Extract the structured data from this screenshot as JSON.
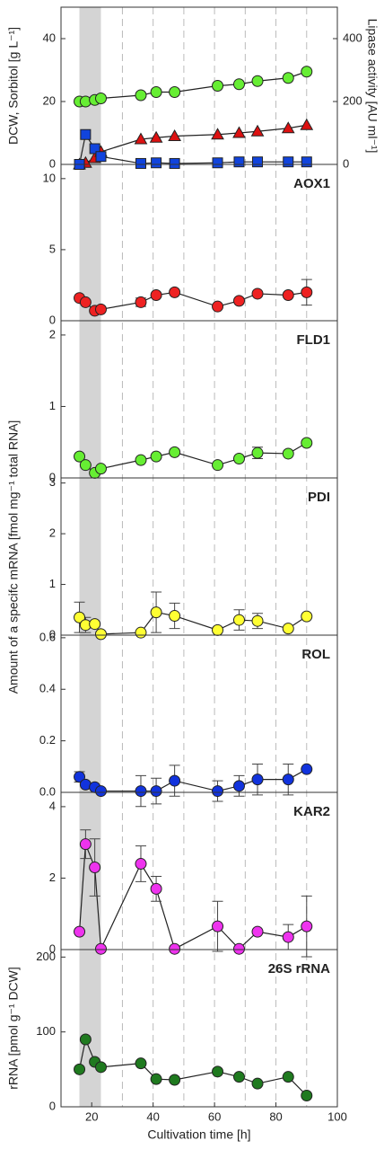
{
  "chart_data": [
    {
      "type": "line",
      "ylabel": "DCW, Sorbitol [g L⁻¹]",
      "y2label": "Lipase activity [AU ml⁻¹]",
      "x": [
        16,
        18,
        21,
        23,
        36,
        41,
        47,
        61,
        68,
        74,
        84,
        90
      ],
      "ylim": [
        0,
        50
      ],
      "yticks": [
        0,
        20,
        40
      ],
      "y2lim": [
        0,
        500
      ],
      "y2ticks": [
        0,
        200,
        400
      ],
      "series": [
        {
          "color": "#66ee33",
          "marker": "circle",
          "values": [
            20,
            20,
            20.5,
            21,
            22,
            23,
            23,
            25,
            25.5,
            26.5,
            27.5,
            29.5
          ]
        },
        {
          "color": "#dd1111",
          "marker": "triangle",
          "axis": "y2",
          "values": [
            0,
            5,
            20,
            40,
            80,
            85,
            90,
            95,
            100,
            105,
            115,
            125
          ]
        },
        {
          "color": "#1144dd",
          "marker": "square",
          "values": [
            0,
            9.5,
            5,
            2.5,
            0.3,
            0.5,
            0.3,
            0.5,
            0.8,
            0.8,
            0.8,
            0.8
          ]
        }
      ]
    },
    {
      "type": "line",
      "label": "AOX1",
      "x": [
        16,
        18,
        21,
        23,
        36,
        41,
        47,
        61,
        68,
        74,
        84,
        90
      ],
      "ylim": [
        0,
        11
      ],
      "yticks": [
        0,
        5,
        10
      ],
      "series": [
        {
          "color": "#ee2222",
          "marker": "circle",
          "values": [
            1.6,
            1.3,
            0.7,
            0.8,
            1.3,
            1.8,
            2.0,
            1.0,
            1.4,
            1.9,
            1.8,
            2.0
          ],
          "errors": [
            null,
            null,
            null,
            null,
            0.3,
            null,
            null,
            null,
            null,
            null,
            null,
            0.9
          ]
        }
      ]
    },
    {
      "type": "line",
      "label": "FLD1",
      "x": [
        16,
        18,
        21,
        23,
        36,
        41,
        47,
        61,
        68,
        74,
        84,
        90
      ],
      "ylim": [
        0,
        2.2
      ],
      "yticks": [
        0,
        1,
        2
      ],
      "series": [
        {
          "color": "#66ee33",
          "marker": "circle",
          "values": [
            0.3,
            0.18,
            0.07,
            0.13,
            0.25,
            0.3,
            0.36,
            0.18,
            0.27,
            0.35,
            0.34,
            0.49
          ],
          "errors": [
            null,
            null,
            null,
            null,
            null,
            null,
            null,
            null,
            null,
            0.08,
            null,
            null
          ]
        }
      ]
    },
    {
      "type": "line",
      "label": "PDI",
      "x": [
        16,
        18,
        21,
        23,
        36,
        41,
        47,
        61,
        68,
        74,
        84,
        90
      ],
      "ylim": [
        0,
        3.1
      ],
      "yticks": [
        0,
        1,
        2,
        3
      ],
      "series": [
        {
          "color": "#ffff33",
          "marker": "circle",
          "values": [
            0.35,
            0.2,
            0.22,
            0.02,
            0.05,
            0.45,
            0.38,
            0.1,
            0.3,
            0.28,
            0.13,
            0.37
          ],
          "errors": [
            0.3,
            0.15,
            null,
            null,
            null,
            0.4,
            0.25,
            null,
            0.2,
            0.15,
            null,
            null
          ]
        }
      ]
    },
    {
      "type": "line",
      "label": "ROL",
      "x": [
        16,
        18,
        21,
        23,
        36,
        41,
        47,
        61,
        68,
        74,
        84,
        90
      ],
      "ylim": [
        0,
        0.61
      ],
      "yticks": [
        {
          "value": 0,
          "label": "0.0"
        },
        0.2,
        0.4,
        0.6
      ],
      "series": [
        {
          "color": "#1133dd",
          "marker": "circle",
          "values": [
            0.06,
            0.03,
            0.02,
            0.005,
            0.005,
            0.005,
            0.045,
            0.005,
            0.025,
            0.05,
            0.05,
            0.09
          ],
          "errors": [
            0.02,
            null,
            null,
            null,
            0.06,
            0.05,
            0.06,
            0.04,
            0.04,
            0.06,
            0.06,
            null
          ]
        }
      ]
    },
    {
      "type": "line",
      "label": "KAR2",
      "x": [
        16,
        18,
        21,
        23,
        36,
        41,
        47,
        61,
        68,
        74,
        84,
        90
      ],
      "ylim": [
        0,
        4.4
      ],
      "yticks": [
        0,
        2,
        4
      ],
      "series": [
        {
          "color": "#ee33ee",
          "marker": "circle",
          "values": [
            0.5,
            2.95,
            2.3,
            0.02,
            2.4,
            1.7,
            0.02,
            0.65,
            0.02,
            0.5,
            0.35,
            0.65
          ],
          "errors": [
            null,
            0.4,
            0.8,
            null,
            0.5,
            0.35,
            null,
            0.7,
            null,
            null,
            0.35,
            0.85
          ]
        }
      ]
    },
    {
      "type": "line",
      "label": "26S rRNA",
      "ylabel": "rRNA [pmol g⁻¹ DCW]",
      "xlabel": "Cultivation time [h]",
      "x": [
        16,
        18,
        21,
        23,
        36,
        41,
        47,
        61,
        68,
        74,
        84,
        90
      ],
      "ylim": [
        0,
        210
      ],
      "yticks": [
        0,
        100,
        200
      ],
      "xlim": [
        10,
        100
      ],
      "xticks": [
        20,
        40,
        60,
        80,
        100
      ],
      "x_gridlines": [
        30,
        40,
        50,
        60,
        70,
        80,
        90
      ],
      "shaded_x": [
        16,
        23
      ],
      "series": [
        {
          "color": "#1f7a1f",
          "marker": "circle",
          "values": [
            50,
            90,
            60,
            53,
            58,
            37,
            36,
            47,
            40,
            31,
            40,
            15
          ]
        }
      ]
    }
  ],
  "shared_ylabel": "Amount of a specifc mRNA [fmol mg⁻¹ total RNA]"
}
